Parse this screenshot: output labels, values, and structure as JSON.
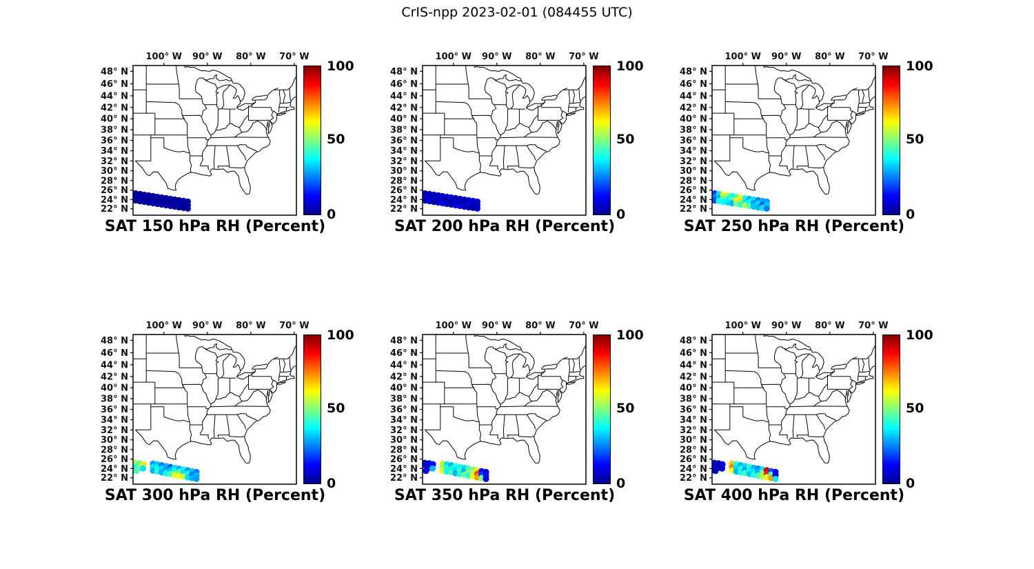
{
  "figure_title": "CrIS-npp 2023-02-01 (084455 UTC)",
  "axes": {
    "projection": "mercator",
    "lon_range": [
      -107.1,
      -69.5
    ],
    "lat_range": [
      20.6,
      48.9
    ],
    "lon_tick_labels": [
      "100° W",
      "90° W",
      "80° W",
      "70° W"
    ],
    "lon_tick_values": [
      -100,
      -90,
      -80,
      -70
    ],
    "lat_tick_labels": [
      "48° N",
      "46° N",
      "44° N",
      "42° N",
      "40° N",
      "38° N",
      "36° N",
      "34° N",
      "32° N",
      "30° N",
      "28° N",
      "26° N",
      "24° N",
      "22° N"
    ],
    "lat_tick_values": [
      48,
      46,
      44,
      42,
      40,
      38,
      36,
      34,
      32,
      30,
      28,
      26,
      24,
      22
    ]
  },
  "colorbar": {
    "min": 0,
    "max": 100,
    "tick_labels": [
      "100",
      "50",
      "0"
    ],
    "colormap": "jet"
  },
  "chart_data": [
    {
      "type": "scatter",
      "title": "SAT 150 hPa RH (Percent)",
      "level_hPa": 150,
      "variable": "RH",
      "units": "Percent",
      "colorbar": {
        "min": 0,
        "max": 100
      },
      "swath": {
        "lons": [
          -107.5,
          -106.5,
          -105.5,
          -104.5,
          -103.5,
          -102.5,
          -101.5,
          -100.5,
          -99.5,
          -98.5,
          -97.5,
          -96.5,
          -95.5,
          -94.5
        ],
        "lats": [
          24.7,
          24.55,
          24.41,
          24.26,
          24.12,
          23.97,
          23.82,
          23.68,
          23.53,
          23.38,
          23.24,
          23.09,
          22.95,
          22.8
        ],
        "row_offset_deg": 0.75,
        "values": [
          [
            4,
            2,
            3
          ],
          [
            3,
            5,
            2
          ],
          [
            2,
            3,
            4
          ],
          [
            5,
            2,
            3
          ],
          [
            3,
            4,
            2
          ],
          [
            2,
            3,
            5
          ],
          [
            4,
            2,
            3
          ],
          [
            3,
            5,
            4
          ],
          [
            2,
            3,
            2
          ],
          [
            4,
            2,
            5
          ],
          [
            3,
            4,
            3
          ],
          [
            2,
            5,
            3
          ],
          [
            4,
            3,
            2
          ],
          [
            3,
            2,
            4
          ]
        ]
      },
      "cluster": {
        "points": [],
        "values": []
      }
    },
    {
      "type": "scatter",
      "title": "SAT 200 hPa RH (Percent)",
      "level_hPa": 200,
      "variable": "RH",
      "units": "Percent",
      "colorbar": {
        "min": 0,
        "max": 100
      },
      "swath": {
        "lons": [
          -107.5,
          -106.5,
          -105.5,
          -104.5,
          -103.5,
          -102.5,
          -101.5,
          -100.5,
          -99.5,
          -98.5,
          -97.5,
          -96.5,
          -95.5,
          -94.5
        ],
        "lats": [
          24.7,
          24.55,
          24.41,
          24.26,
          24.12,
          23.97,
          23.82,
          23.68,
          23.53,
          23.38,
          23.24,
          23.09,
          22.95,
          22.8
        ],
        "row_offset_deg": 0.75,
        "values": [
          [
            6,
            4,
            8
          ],
          [
            5,
            9,
            4
          ],
          [
            8,
            5,
            10
          ],
          [
            4,
            7,
            5
          ],
          [
            9,
            6,
            4
          ],
          [
            5,
            8,
            12
          ],
          [
            7,
            4,
            6
          ],
          [
            10,
            6,
            5
          ],
          [
            4,
            9,
            7
          ],
          [
            6,
            5,
            11
          ],
          [
            8,
            4,
            6
          ],
          [
            5,
            10,
            5
          ],
          [
            7,
            6,
            4
          ],
          [
            9,
            5,
            8
          ]
        ]
      },
      "cluster": {
        "points": [],
        "values": []
      }
    },
    {
      "type": "scatter",
      "title": "SAT 250 hPa RH (Percent)",
      "level_hPa": 250,
      "variable": "RH",
      "units": "Percent",
      "colorbar": {
        "min": 0,
        "max": 100
      },
      "swath": {
        "lons": [
          -107.5,
          -106.5,
          -105.5,
          -104.5,
          -103.5,
          -102.5,
          -101.5,
          -100.5,
          -99.5,
          -98.5,
          -97.5,
          -96.5,
          -95.5,
          -94.5
        ],
        "lats": [
          24.7,
          24.55,
          24.41,
          24.26,
          24.12,
          23.97,
          23.82,
          23.68,
          23.53,
          23.38,
          23.24,
          23.09,
          22.95,
          22.8
        ],
        "row_offset_deg": 0.75,
        "values": [
          [
            12,
            8,
            15
          ],
          [
            18,
            25,
            20
          ],
          [
            35,
            30,
            40
          ],
          [
            62,
            48,
            38
          ],
          [
            55,
            40,
            35
          ],
          [
            38,
            45,
            30
          ],
          [
            45,
            58,
            50
          ],
          [
            62,
            65,
            42
          ],
          [
            40,
            35,
            55
          ],
          [
            30,
            38,
            45
          ],
          [
            35,
            28,
            32
          ],
          [
            25,
            35,
            30
          ],
          [
            30,
            22,
            35
          ],
          [
            28,
            32,
            25
          ]
        ]
      },
      "cluster": {
        "points": [],
        "values": []
      }
    },
    {
      "type": "scatter",
      "title": "SAT 300 hPa RH (Percent)",
      "level_hPa": 300,
      "variable": "RH",
      "units": "Percent",
      "colorbar": {
        "min": 0,
        "max": 100
      },
      "swath": {
        "lons": [
          -102.5,
          -101.5,
          -100.5,
          -99.5,
          -98.5,
          -97.5,
          -96.5,
          -95.5,
          -94.5,
          -93.5,
          -92.5
        ],
        "lats": [
          24.3,
          24.12,
          23.94,
          23.76,
          23.58,
          23.4,
          23.22,
          23.04,
          22.86,
          22.68,
          22.5
        ],
        "row_offset_deg": 0.75,
        "values": [
          [
            28,
            35,
            30
          ],
          [
            32,
            38,
            42
          ],
          [
            25,
            35,
            30
          ],
          [
            30,
            28,
            38
          ],
          [
            22,
            32,
            45
          ],
          [
            35,
            40,
            60
          ],
          [
            30,
            45,
            62
          ],
          [
            38,
            35,
            58
          ],
          [
            28,
            40,
            35
          ],
          [
            32,
            25,
            30
          ],
          [
            25,
            30,
            28
          ]
        ]
      },
      "cluster": {
        "points": [
          [
            -107.6,
            25.3
          ],
          [
            -106.6,
            25.2
          ],
          [
            -105.6,
            25.1
          ],
          [
            -104.7,
            24.9
          ],
          [
            -107.5,
            24.4
          ],
          [
            -106.5,
            24.3
          ],
          [
            -105.5,
            24.2
          ],
          [
            -104.8,
            24.0
          ],
          [
            -107.2,
            23.6
          ],
          [
            -106.3,
            23.5
          ]
        ],
        "values": [
          62,
          55,
          48,
          65,
          58,
          40,
          50,
          35,
          30,
          45
        ]
      }
    },
    {
      "type": "scatter",
      "title": "SAT 350 hPa RH (Percent)",
      "level_hPa": 350,
      "variable": "RH",
      "units": "Percent",
      "colorbar": {
        "min": 0,
        "max": 100
      },
      "swath": {
        "lons": [
          -102.5,
          -101.5,
          -100.5,
          -99.5,
          -98.5,
          -97.5,
          -96.5,
          -95.5,
          -94.5,
          -93.5,
          -92.5
        ],
        "lats": [
          24.3,
          24.12,
          23.94,
          23.76,
          23.58,
          23.4,
          23.22,
          23.04,
          22.86,
          22.68,
          22.5
        ],
        "row_offset_deg": 0.75,
        "values": [
          [
            58,
            52,
            60
          ],
          [
            35,
            42,
            38
          ],
          [
            30,
            38,
            45
          ],
          [
            42,
            35,
            30
          ],
          [
            38,
            45,
            40
          ],
          [
            35,
            30,
            48
          ],
          [
            45,
            50,
            42
          ],
          [
            50,
            55,
            60
          ],
          [
            65,
            80,
            72
          ],
          [
            12,
            18,
            50
          ],
          [
            8,
            14,
            10
          ]
        ]
      },
      "cluster": {
        "points": [
          [
            -107.6,
            25.3
          ],
          [
            -106.6,
            25.2
          ],
          [
            -105.6,
            25.1
          ],
          [
            -104.7,
            24.9
          ],
          [
            -107.5,
            24.4
          ],
          [
            -106.5,
            24.3
          ],
          [
            -105.5,
            24.2
          ],
          [
            -104.8,
            24.0
          ],
          [
            -107.2,
            23.6
          ],
          [
            -106.3,
            23.5
          ]
        ],
        "values": [
          8,
          6,
          10,
          12,
          5,
          9,
          7,
          30,
          35,
          10
        ]
      }
    },
    {
      "type": "scatter",
      "title": "SAT 400 hPa RH (Percent)",
      "level_hPa": 400,
      "variable": "RH",
      "units": "Percent",
      "colorbar": {
        "min": 0,
        "max": 100
      },
      "swath": {
        "lons": [
          -102.5,
          -101.5,
          -100.5,
          -99.5,
          -98.5,
          -97.5,
          -96.5,
          -95.5,
          -94.5,
          -93.5,
          -92.5
        ],
        "lats": [
          24.3,
          24.12,
          23.94,
          23.76,
          23.58,
          23.4,
          23.22,
          23.04,
          22.86,
          22.68,
          22.5
        ],
        "row_offset_deg": 0.75,
        "values": [
          [
            68,
            75,
            62
          ],
          [
            40,
            35,
            30
          ],
          [
            30,
            42,
            38
          ],
          [
            35,
            28,
            45
          ],
          [
            42,
            38,
            32
          ],
          [
            30,
            35,
            40
          ],
          [
            25,
            30,
            45
          ],
          [
            35,
            50,
            55
          ],
          [
            92,
            85,
            60
          ],
          [
            20,
            45,
            72
          ],
          [
            12,
            8,
            35
          ]
        ]
      },
      "cluster": {
        "points": [
          [
            -107.6,
            25.3
          ],
          [
            -106.6,
            25.2
          ],
          [
            -105.6,
            25.1
          ],
          [
            -104.7,
            24.9
          ],
          [
            -107.5,
            24.4
          ],
          [
            -106.5,
            24.3
          ],
          [
            -105.5,
            24.2
          ],
          [
            -104.8,
            24.0
          ],
          [
            -107.2,
            23.6
          ],
          [
            -106.3,
            23.5
          ]
        ],
        "values": [
          5,
          7,
          4,
          8,
          6,
          9,
          5,
          7,
          10,
          6
        ]
      }
    }
  ]
}
